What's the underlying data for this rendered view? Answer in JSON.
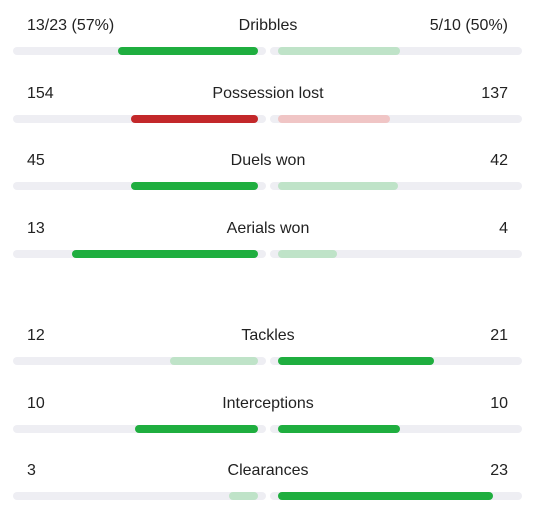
{
  "colors": {
    "positive_strong": "#1fae3f",
    "positive_light": "#bfe3c8",
    "negative_strong": "#c3282a",
    "negative_light": "#f0c5c5",
    "track": "#eeeef3"
  },
  "stats": [
    {
      "label": "Dribbles",
      "home_text": "13/23 (57%)",
      "away_text": "5/10 (50%)",
      "home_fill": 0.57,
      "away_fill": 0.5,
      "home_color": "positive_strong",
      "away_color": "positive_light"
    },
    {
      "label": "Possession lost",
      "home_text": "154",
      "away_text": "137",
      "home_fill": 0.52,
      "away_fill": 0.46,
      "home_color": "negative_strong",
      "away_color": "negative_light"
    },
    {
      "label": "Duels won",
      "home_text": "45",
      "away_text": "42",
      "home_fill": 0.52,
      "away_fill": 0.49,
      "home_color": "positive_strong",
      "away_color": "positive_light"
    },
    {
      "label": "Aerials won",
      "home_text": "13",
      "away_text": "4",
      "home_fill": 0.76,
      "away_fill": 0.24,
      "home_color": "positive_strong",
      "away_color": "positive_light"
    },
    {
      "label": "Tackles",
      "home_text": "12",
      "away_text": "21",
      "home_fill": 0.36,
      "away_fill": 0.64,
      "home_color": "positive_light",
      "away_color": "positive_strong"
    },
    {
      "label": "Interceptions",
      "home_text": "10",
      "away_text": "10",
      "home_fill": 0.5,
      "away_fill": 0.5,
      "home_color": "positive_strong",
      "away_color": "positive_strong"
    },
    {
      "label": "Clearances",
      "home_text": "3",
      "away_text": "23",
      "home_fill": 0.12,
      "away_fill": 0.88,
      "home_color": "positive_light",
      "away_color": "positive_strong"
    }
  ]
}
